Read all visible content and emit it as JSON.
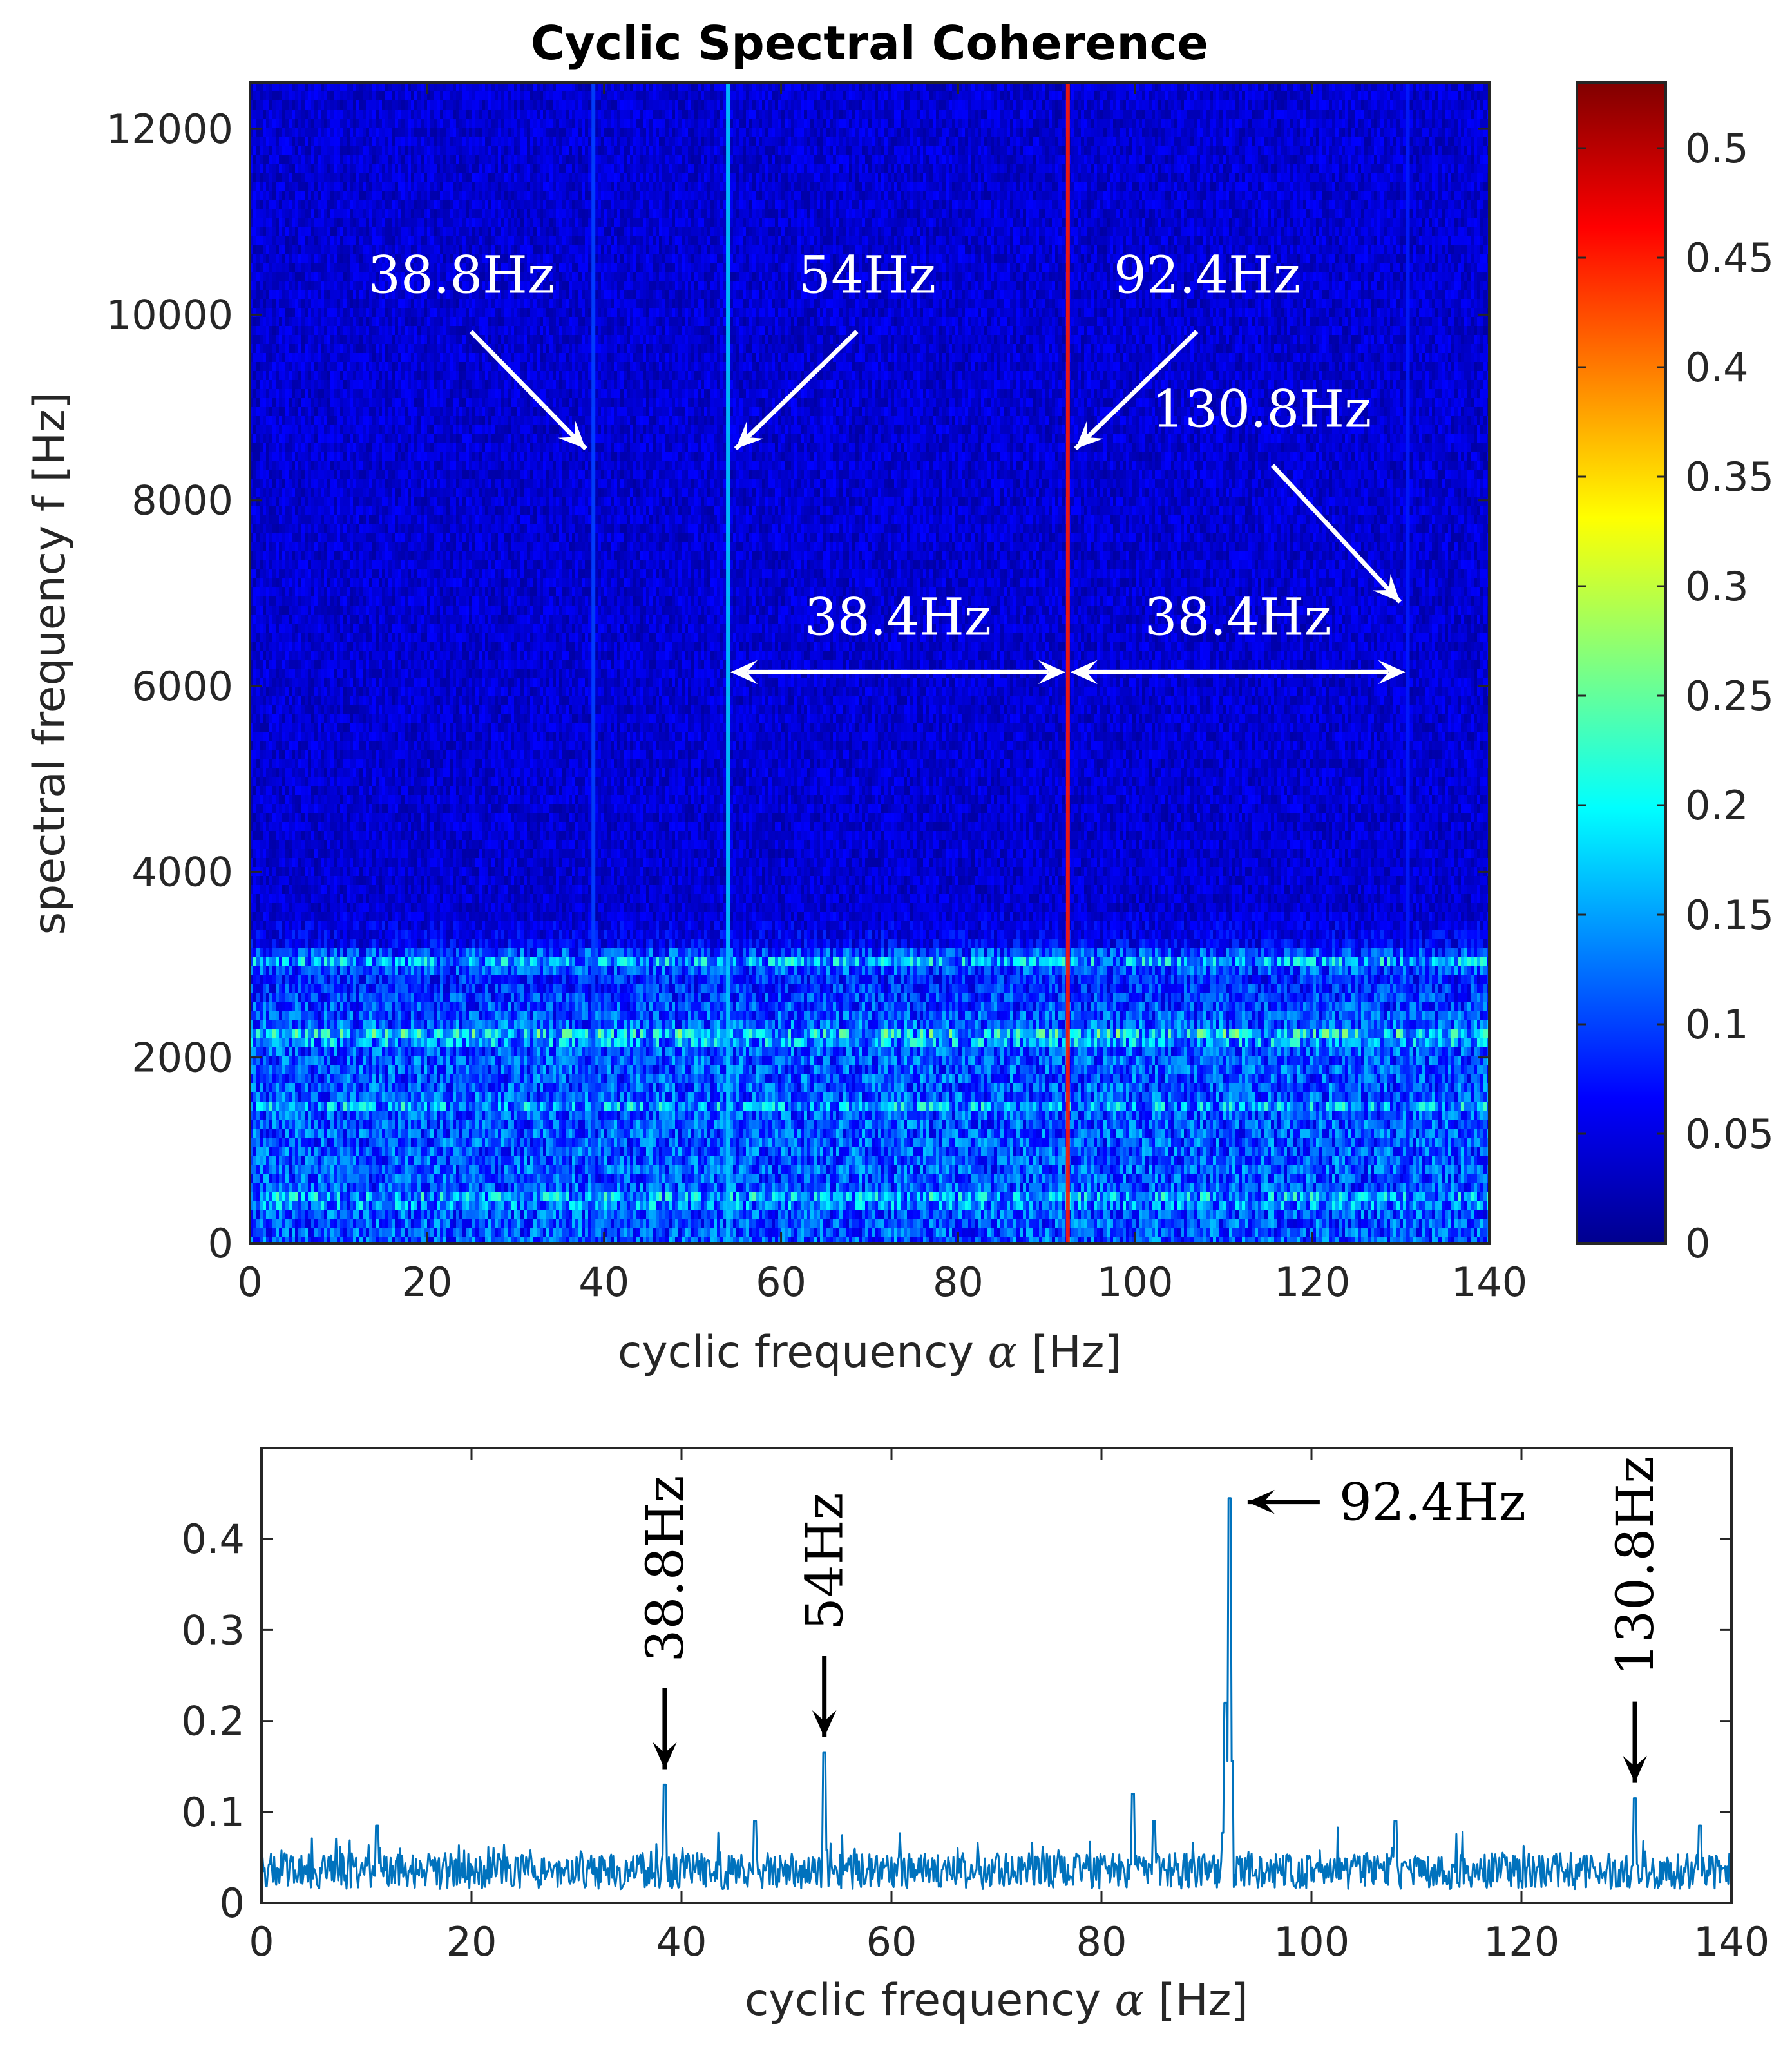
{
  "figure": {
    "title": "Cyclic Spectral Coherence"
  },
  "chart_data": [
    {
      "type": "heatmap",
      "title": "Cyclic Spectral Coherence",
      "xlabel": "cyclic frequency",
      "xlabel_symbol": "α",
      "xlabel_unit": "[Hz]",
      "ylabel": "spectral frequency f [Hz]",
      "xlim": [
        0,
        140
      ],
      "ylim": [
        0,
        12500
      ],
      "xticks": [
        0,
        20,
        40,
        60,
        80,
        100,
        120,
        140
      ],
      "yticks": [
        0,
        2000,
        4000,
        6000,
        8000,
        10000,
        12000
      ],
      "colorbar": {
        "colormap": "jet",
        "clim": [
          0,
          0.53
        ],
        "ticks": [
          0,
          0.05,
          0.1,
          0.15,
          0.2,
          0.25,
          0.3,
          0.35,
          0.4,
          0.45,
          0.5
        ],
        "tick_labels": [
          "0",
          "0.05",
          "0.1",
          "0.15",
          "0.2",
          "0.25",
          "0.3",
          "0.35",
          "0.4",
          "0.45",
          "0.5"
        ]
      },
      "background_level": 0.04,
      "low_band_level": 0.1,
      "low_band_top": 3600,
      "horizontal_bands": [
        {
          "f": 2250,
          "level": 0.16
        },
        {
          "f": 500,
          "level": 0.14
        },
        {
          "f": 3050,
          "level": 0.12
        },
        {
          "f": 1500,
          "level": 0.12
        }
      ],
      "vertical_lines": [
        {
          "alpha": 38.8,
          "level": 0.1
        },
        {
          "alpha": 54,
          "level": 0.17
        },
        {
          "alpha": 92.4,
          "level": 0.45
        },
        {
          "alpha": 130.8,
          "level": 0.08
        }
      ],
      "annotations": [
        {
          "label": "38.8Hz",
          "alpha": 38.8,
          "f": 8500
        },
        {
          "label": "54Hz",
          "alpha": 54,
          "f": 8500
        },
        {
          "label": "92.4Hz",
          "alpha": 92.4,
          "f": 8500
        },
        {
          "label": "130.8Hz",
          "alpha": 130.8,
          "f": 6850
        }
      ],
      "spacing_annotations": [
        {
          "label": "38.4Hz",
          "from": 54,
          "to": 92.4,
          "f": 6150
        },
        {
          "label": "38.4Hz",
          "from": 92.4,
          "to": 130.8,
          "f": 6150
        }
      ]
    },
    {
      "type": "line",
      "xlabel": "cyclic frequency",
      "xlabel_symbol": "α",
      "xlabel_unit": "[Hz]",
      "ylabel": "",
      "xlim": [
        0,
        140
      ],
      "ylim": [
        0,
        0.5
      ],
      "xticks": [
        0,
        20,
        40,
        60,
        80,
        100,
        120,
        140
      ],
      "yticks": [
        0,
        0.1,
        0.2,
        0.3,
        0.4
      ],
      "ytick_labels": [
        "0",
        "0.1",
        "0.2",
        "0.3",
        "0.4"
      ],
      "color": "#0072BD",
      "baseline": 0.035,
      "peaks": [
        {
          "x": 38.4,
          "y": 0.13
        },
        {
          "x": 53.6,
          "y": 0.165
        },
        {
          "x": 83.0,
          "y": 0.12
        },
        {
          "x": 91.8,
          "y": 0.22
        },
        {
          "x": 92.2,
          "y": 0.445
        },
        {
          "x": 130.8,
          "y": 0.115
        },
        {
          "x": 11.0,
          "y": 0.085
        },
        {
          "x": 47.0,
          "y": 0.09
        },
        {
          "x": 85.0,
          "y": 0.09
        },
        {
          "x": 108.0,
          "y": 0.09
        },
        {
          "x": 137.0,
          "y": 0.085
        }
      ],
      "annotations": [
        {
          "label": "38.8Hz",
          "x": 38.4,
          "y": 0.13,
          "orientation": "vertical"
        },
        {
          "label": "54Hz",
          "x": 53.6,
          "y": 0.165,
          "orientation": "vertical"
        },
        {
          "label": "92.4Hz",
          "x": 92.2,
          "y": 0.445,
          "orientation": "horizontal"
        },
        {
          "label": "130.8Hz",
          "x": 130.8,
          "y": 0.115,
          "orientation": "vertical"
        }
      ]
    }
  ]
}
